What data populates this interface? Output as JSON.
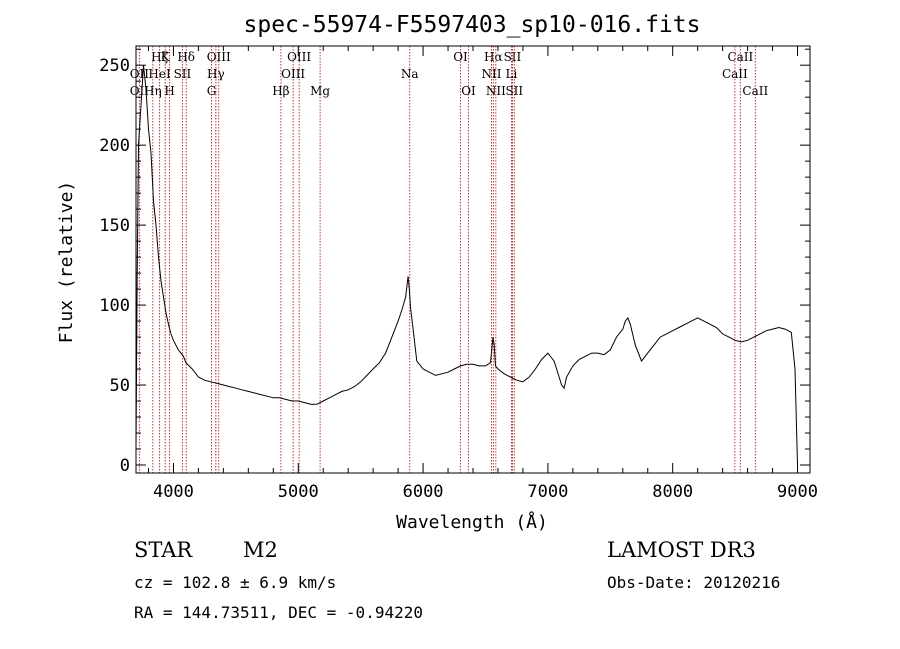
{
  "chart_data": {
    "type": "line",
    "title": "spec-55974-F5597403_sp10-016.fits",
    "xlabel": "Wavelength (Å)",
    "ylabel": "Flux (relative)",
    "xlim": [
      3700,
      9100
    ],
    "ylim": [
      -5,
      262
    ],
    "xticks": [
      4000,
      5000,
      6000,
      7000,
      8000,
      9000
    ],
    "yticks": [
      0,
      50,
      100,
      150,
      200,
      250
    ],
    "grid": false,
    "series": [
      {
        "x": [
          3700,
          3710,
          3720,
          3740,
          3760,
          3780,
          3800,
          3820,
          3840,
          3860,
          3880,
          3900,
          3920,
          3940,
          3960,
          3980,
          4000,
          4020,
          4040,
          4060,
          4080,
          4100,
          4150,
          4200,
          4250,
          4300,
          4350,
          4400,
          4450,
          4500,
          4550,
          4600,
          4650,
          4700,
          4750,
          4800,
          4850,
          4900,
          4950,
          5000,
          5050,
          5100,
          5150,
          5200,
          5250,
          5300,
          5350,
          5400,
          5450,
          5500,
          5550,
          5600,
          5650,
          5700,
          5750,
          5800,
          5830,
          5860,
          5880,
          5890,
          5900,
          5920,
          5950,
          6000,
          6050,
          6100,
          6150,
          6200,
          6250,
          6300,
          6350,
          6400,
          6450,
          6500,
          6540,
          6560,
          6570,
          6580,
          6600,
          6650,
          6700,
          6750,
          6800,
          6850,
          6900,
          6950,
          7000,
          7050,
          7070,
          7090,
          7110,
          7130,
          7150,
          7200,
          7250,
          7300,
          7350,
          7400,
          7450,
          7500,
          7550,
          7600,
          7620,
          7640,
          7660,
          7700,
          7750,
          7800,
          7850,
          7900,
          7950,
          8000,
          8050,
          8100,
          8150,
          8200,
          8250,
          8300,
          8350,
          8400,
          8450,
          8500,
          8550,
          8600,
          8650,
          8700,
          8750,
          8800,
          8850,
          8900,
          8950,
          8980,
          9000
        ],
        "y": [
          10,
          120,
          200,
          225,
          250,
          235,
          210,
          195,
          165,
          150,
          130,
          115,
          105,
          95,
          88,
          82,
          78,
          75,
          72,
          70,
          68,
          64,
          60,
          55,
          53,
          52,
          51,
          50,
          49,
          48,
          47,
          46,
          45,
          44,
          43,
          42,
          42,
          41,
          40,
          40,
          39,
          38,
          38,
          40,
          42,
          44,
          46,
          47,
          49,
          52,
          56,
          60,
          64,
          70,
          80,
          90,
          97,
          105,
          118,
          110,
          98,
          85,
          65,
          60,
          58,
          56,
          57,
          58,
          60,
          62,
          63,
          63,
          62,
          62,
          64,
          80,
          75,
          62,
          60,
          57,
          55,
          53,
          52,
          55,
          60,
          66,
          70,
          65,
          60,
          55,
          50,
          48,
          55,
          62,
          66,
          68,
          70,
          70,
          69,
          72,
          80,
          85,
          90,
          92,
          88,
          75,
          65,
          70,
          75,
          80,
          82,
          84,
          86,
          88,
          90,
          92,
          90,
          88,
          86,
          82,
          80,
          78,
          77,
          78,
          80,
          82,
          84,
          85,
          86,
          85,
          83,
          60,
          0
        ]
      }
    ],
    "lines_top": [
      {
        "label": "Hζ",
        "x": 3889
      },
      {
        "label": "K",
        "x": 3934
      },
      {
        "label": "Hδ",
        "x": 4102
      },
      {
        "label": "OIII",
        "x": 4363
      },
      {
        "label": "OIII",
        "x": 5007
      },
      {
        "label": "OI",
        "x": 6300
      },
      {
        "label": "Hα",
        "x": 6563
      },
      {
        "label": "SII",
        "x": 6716
      },
      {
        "label": "CaII",
        "x": 8542
      }
    ],
    "lines_mid": [
      {
        "label": "OII",
        "x": 3727
      },
      {
        "label": "HeI",
        "x": 3889
      },
      {
        "label": "SII",
        "x": 4072
      },
      {
        "label": "Hγ",
        "x": 4340
      },
      {
        "label": "OIII",
        "x": 4959
      },
      {
        "label": "Na",
        "x": 5893
      },
      {
        "label": "NII",
        "x": 6548
      },
      {
        "label": "Li",
        "x": 6708
      },
      {
        "label": "CaII",
        "x": 8498
      }
    ],
    "lines_bot": [
      {
        "label": "OII",
        "x": 3727
      },
      {
        "label": "Hη",
        "x": 3835
      },
      {
        "label": "H",
        "x": 3969
      },
      {
        "label": "G",
        "x": 4305
      },
      {
        "label": "Hβ",
        "x": 4861
      },
      {
        "label": "Mg",
        "x": 5175
      },
      {
        "label": "OI",
        "x": 6364
      },
      {
        "label": "NII",
        "x": 6583
      },
      {
        "label": "SII",
        "x": 6731
      },
      {
        "label": "CaII",
        "x": 8662
      }
    ],
    "line_color": "#b22222"
  },
  "info": {
    "object_class": "STAR",
    "subclass": "M2",
    "survey": "LAMOST DR3",
    "redshift": "cz = 102.8 ± 6.9 km/s",
    "obs_date": "Obs-Date: 20120216",
    "coords": "RA = 144.73511, DEC =  -0.94220"
  }
}
